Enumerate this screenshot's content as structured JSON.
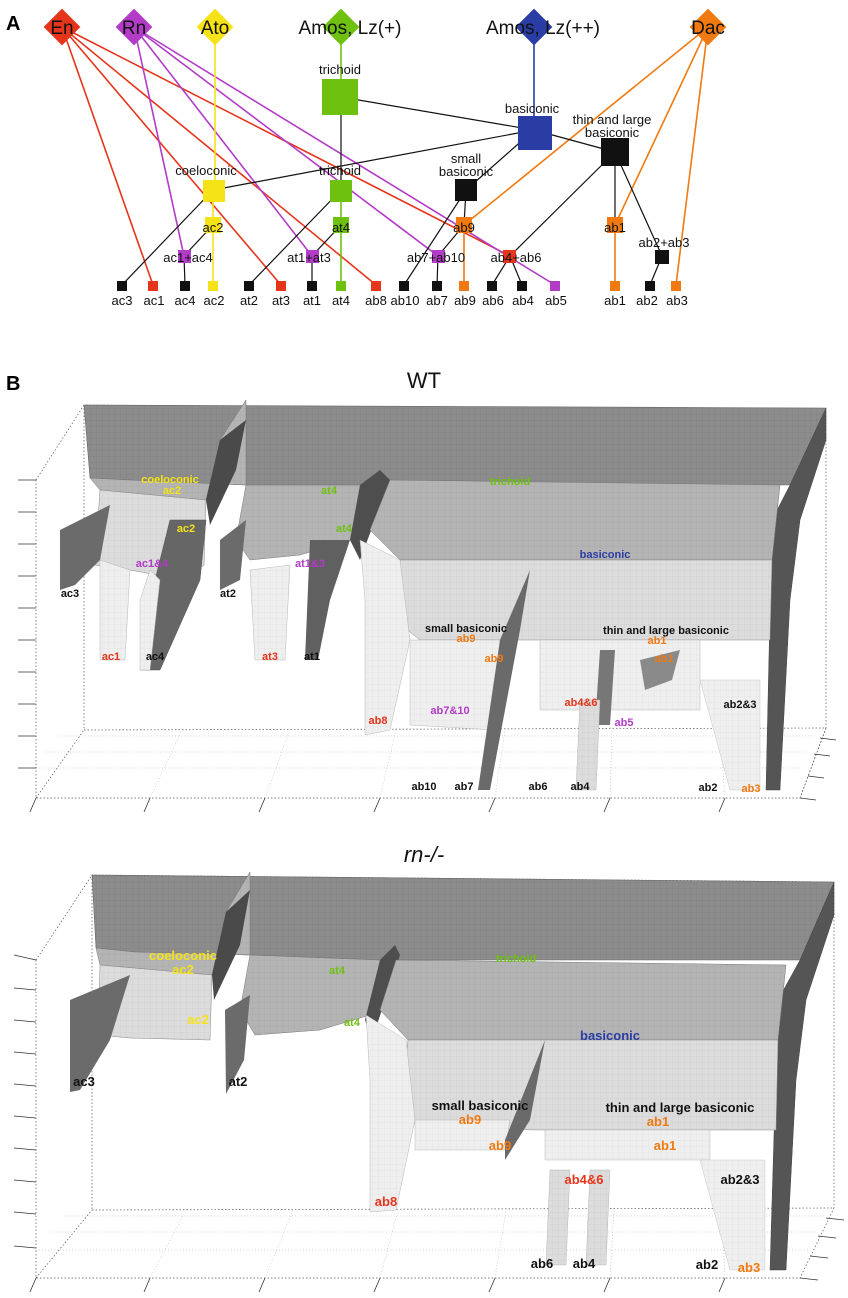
{
  "colors": {
    "red": "#e5351b",
    "purple": "#b23bc8",
    "yellow": "#f5e217",
    "green": "#6ec10e",
    "blue": "#2a3da4",
    "orange": "#f07a10",
    "black": "#111111"
  },
  "panel_a": {
    "letter": "A",
    "factors": [
      "En",
      "Rn",
      "Ato",
      "Amos, Lz(+)",
      "Amos, Lz(++)",
      "Dac"
    ],
    "nodes": {
      "trichoid_top": "trichoid",
      "basiconic_top": "basiconic",
      "thin_large": [
        "thin and large",
        "basiconic"
      ],
      "small_basiconic": [
        "small",
        "basiconic"
      ],
      "coeloconic": "coeloconic",
      "trichoid_mid": "trichoid",
      "ac2": "ac2",
      "at4": "at4",
      "ab9": "ab9",
      "ab1": "ab1",
      "ac1_ac4": "ac1+ac4",
      "at1_at3": "at1+at3",
      "ab7_ab10": "ab7+ab10",
      "ab4_ab6": "ab4+ab6",
      "ab2_ab3": "ab2+ab3"
    },
    "leaves": [
      "ac3",
      "ac1",
      "ac4",
      "ac2",
      "at2",
      "at3",
      "at1",
      "at4",
      "ab8",
      "ab10",
      "ab7",
      "ab9",
      "ab6",
      "ab4",
      "ab5",
      "ab1",
      "ab2",
      "ab3"
    ]
  },
  "panel_b": {
    "letter": "B",
    "wt": {
      "title": "WT",
      "labels": {
        "coeloconic": "coeloconic",
        "ac2_top": "ac2",
        "ac2_mid": "ac2",
        "ac1_4": "ac1&4",
        "ac3": "ac3",
        "ac1": "ac1",
        "ac4": "ac4",
        "at4_top": "at4",
        "at4_mid": "at4",
        "at1_3": "at1&3",
        "at2": "at2",
        "at3": "at3",
        "at1": "at1",
        "trichoid": "trichoid",
        "basiconic": "basiconic",
        "small_basiconic": "small basiconic",
        "ab9_top": "ab9",
        "ab9_mid": "ab9",
        "thin_large": "thin and large basiconic",
        "ab1_top": "ab1",
        "ab1_mid": "ab1",
        "ab8": "ab8",
        "ab7_10": "ab7&10",
        "ab4_6": "ab4&6",
        "ab5": "ab5",
        "ab2_3": "ab2&3",
        "ab10": "ab10",
        "ab7": "ab7",
        "ab6": "ab6",
        "ab4": "ab4",
        "ab2": "ab2",
        "ab3": "ab3"
      }
    },
    "rn": {
      "title": "rn-/-",
      "labels": {
        "coeloconic": "coeloconic",
        "ac2_top": "ac2",
        "ac2_mid": "ac2",
        "ac3": "ac3",
        "at4_top": "at4",
        "at4_mid": "at4",
        "at2": "at2",
        "trichoid": "trichoid",
        "basiconic": "basiconic",
        "small_basiconic": "small basiconic",
        "ab9_top": "ab9",
        "ab9_mid": "ab9",
        "thin_large": "thin and large basiconic",
        "ab1_top": "ab1",
        "ab1_mid": "ab1",
        "ab8": "ab8",
        "ab4_6": "ab4&6",
        "ab2_3": "ab2&3",
        "ab6": "ab6",
        "ab4": "ab4",
        "ab2": "ab2",
        "ab3": "ab3"
      }
    }
  }
}
